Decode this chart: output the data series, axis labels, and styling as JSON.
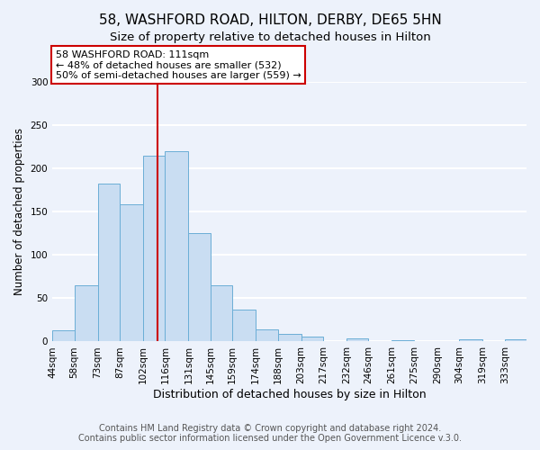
{
  "title": "58, WASHFORD ROAD, HILTON, DERBY, DE65 5HN",
  "subtitle": "Size of property relative to detached houses in Hilton",
  "xlabel": "Distribution of detached houses by size in Hilton",
  "ylabel": "Number of detached properties",
  "bin_labels": [
    "44sqm",
    "58sqm",
    "73sqm",
    "87sqm",
    "102sqm",
    "116sqm",
    "131sqm",
    "145sqm",
    "159sqm",
    "174sqm",
    "188sqm",
    "203sqm",
    "217sqm",
    "232sqm",
    "246sqm",
    "261sqm",
    "275sqm",
    "290sqm",
    "304sqm",
    "319sqm",
    "333sqm"
  ],
  "bar_heights": [
    13,
    65,
    182,
    158,
    215,
    220,
    125,
    65,
    37,
    14,
    9,
    6,
    0,
    4,
    0,
    2,
    0,
    0,
    3,
    0,
    3
  ],
  "bin_edges": [
    44,
    58,
    73,
    87,
    102,
    116,
    131,
    145,
    159,
    174,
    188,
    203,
    217,
    232,
    246,
    261,
    275,
    290,
    304,
    319,
    333,
    347
  ],
  "bar_color": "#c9ddf2",
  "bar_edgecolor": "#6baed6",
  "vline_x": 111,
  "vline_color": "#cc0000",
  "annotation_text": "58 WASHFORD ROAD: 111sqm\n← 48% of detached houses are smaller (532)\n50% of semi-detached houses are larger (559) →",
  "annotation_box_edgecolor": "#cc0000",
  "annotation_box_facecolor": "white",
  "ylim": [
    0,
    300
  ],
  "yticks": [
    0,
    50,
    100,
    150,
    200,
    250,
    300
  ],
  "footer_line1": "Contains HM Land Registry data © Crown copyright and database right 2024.",
  "footer_line2": "Contains public sector information licensed under the Open Government Licence v.3.0.",
  "background_color": "#edf2fb",
  "grid_color": "white",
  "title_fontsize": 11,
  "subtitle_fontsize": 9.5,
  "xlabel_fontsize": 9,
  "ylabel_fontsize": 8.5,
  "tick_fontsize": 7.5,
  "footer_fontsize": 7,
  "annotation_fontsize": 8
}
